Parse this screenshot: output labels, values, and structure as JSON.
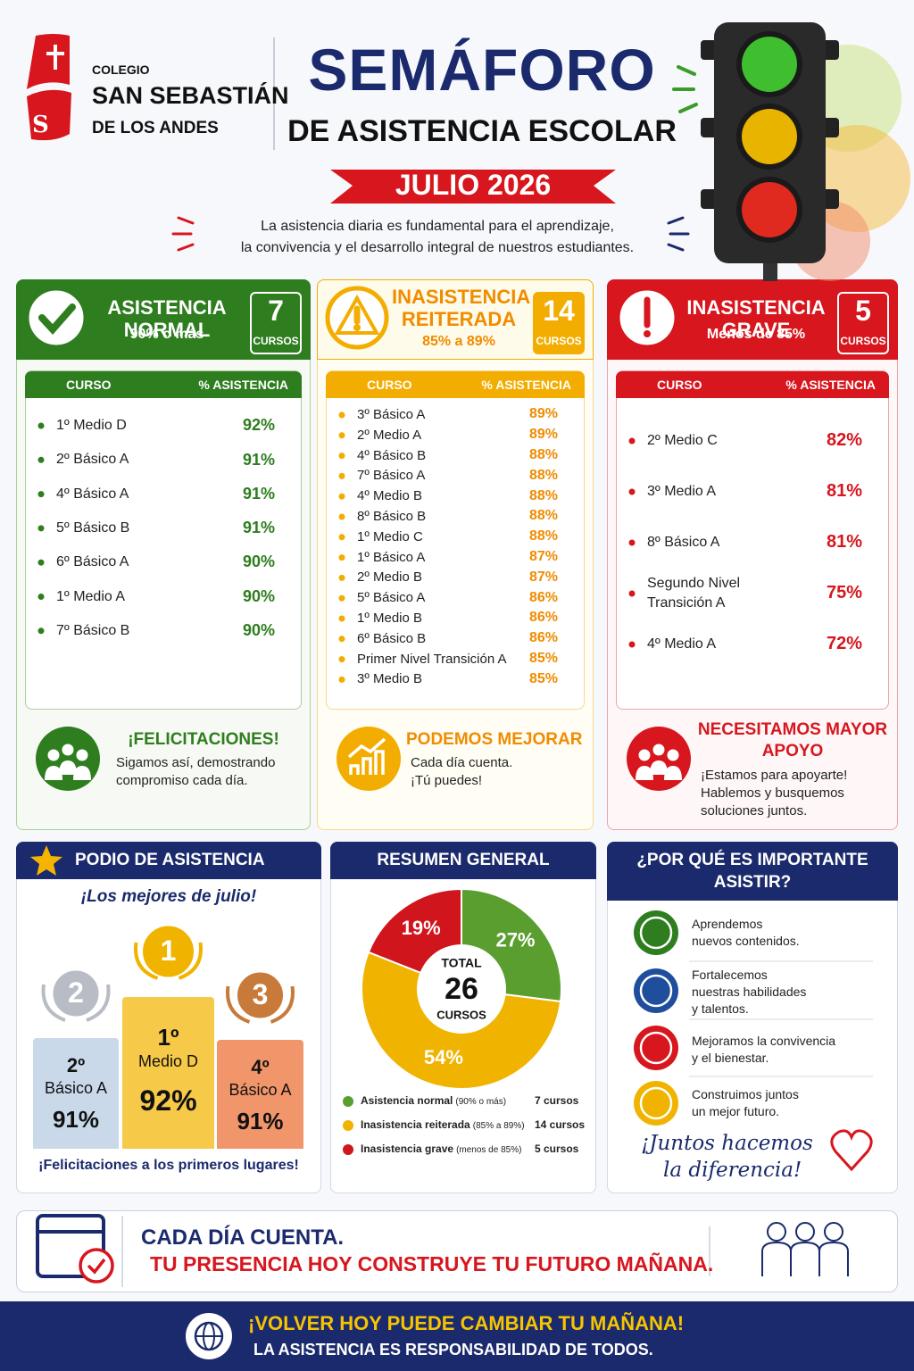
{
  "header": {
    "logo_letter": "S",
    "school": [
      "COLEGIO",
      "SAN SEBASTIÁN",
      "DE LOS ANDES"
    ],
    "title": "SEMÁFORO",
    "subtitle": "DE ASISTENCIA ESCOLAR",
    "date": "JULIO 2026",
    "intro": [
      "La asistencia diaria es fundamental para el aprendizaje,",
      "la convivencia y el desarrollo integral de nuestros estudiantes."
    ]
  },
  "panels": [
    {
      "title": "ASISTENCIA NORMAL",
      "range": "90% o más",
      "count": 7,
      "count_unit": "CURSOS",
      "columns": [
        "CURSO",
        "% ASISTENCIA"
      ],
      "rows": [
        [
          "1º Medio D",
          "92%"
        ],
        [
          "2º Básico A",
          "91%"
        ],
        [
          "4º Básico A",
          "91%"
        ],
        [
          "5º Básico B",
          "91%"
        ],
        [
          "6º Básico A",
          "90%"
        ],
        [
          "1º Medio A",
          "90%"
        ],
        [
          "7º Básico B",
          "90%"
        ]
      ],
      "message": {
        "title": "¡FELICITACIONES!",
        "text": [
          "Sigamos así, demostrando",
          "compromiso cada día."
        ]
      }
    },
    {
      "title": "INASISTENCIA REITERADA",
      "range": "85% a 89%",
      "count": 14,
      "count_unit": "CURSOS",
      "columns": [
        "CURSO",
        "% ASISTENCIA"
      ],
      "rows": [
        [
          "3º Básico A",
          "89%"
        ],
        [
          "2º Medio A",
          "89%"
        ],
        [
          "4º Básico B",
          "88%"
        ],
        [
          "7º Básico A",
          "88%"
        ],
        [
          "4º Medio B",
          "88%"
        ],
        [
          "8º Básico B",
          "88%"
        ],
        [
          "1º Medio C",
          "88%"
        ],
        [
          "1º Básico A",
          "87%"
        ],
        [
          "2º Medio B",
          "87%"
        ],
        [
          "5º Básico A",
          "86%"
        ],
        [
          "1º Medio B",
          "86%"
        ],
        [
          "6º Básico B",
          "86%"
        ],
        [
          "Primer Nivel Transición A",
          "85%"
        ],
        [
          "3º Medio B",
          "85%"
        ]
      ],
      "message": {
        "title": "PODEMOS MEJORAR",
        "text": [
          "Cada día cuenta.",
          "¡Tú puedes!"
        ]
      }
    },
    {
      "title": "INASISTENCIA GRAVE",
      "range": "Menos de 85%",
      "count": 5,
      "count_unit": "CURSOS",
      "columns": [
        "CURSO",
        "% ASISTENCIA"
      ],
      "rows": [
        [
          "2º Medio C",
          "82%"
        ],
        [
          "3º Medio A",
          "81%"
        ],
        [
          "8º Básico A",
          "81%"
        ],
        [
          "Segundo Nivel Transición A",
          "75%"
        ],
        [
          "4º Medio A",
          "72%"
        ]
      ],
      "message": {
        "title": "NECESITAMOS MAYOR APOYO",
        "text": [
          "¡Estamos para apoyarte!",
          "Hablemos y busquemos",
          "soluciones juntos."
        ]
      }
    }
  ],
  "podium": {
    "title": "PODIO DE ASISTENCIA",
    "subtitle": "¡Los mejores de julio!",
    "places": [
      {
        "medal": 2,
        "course": [
          "2º",
          "Básico A"
        ],
        "value": "91%"
      },
      {
        "medal": 1,
        "course": [
          "1º",
          "Medio D"
        ],
        "value": "92%"
      },
      {
        "medal": 3,
        "course": [
          "4º",
          "Básico A"
        ],
        "value": "91%"
      }
    ],
    "footer": "¡Felicitaciones a los primeros lugares!"
  },
  "summary": {
    "title": "RESUMEN GENERAL",
    "center": [
      "TOTAL",
      26,
      "CURSOS"
    ],
    "counts": [
      "7 cursos",
      "14 cursos",
      "5 cursos"
    ]
  },
  "chart_data": {
    "type": "pie",
    "categories": [
      "Asistencia normal",
      "Inasistencia reiterada",
      "Inasistencia grave"
    ],
    "category_notes": [
      "(90% o más)",
      "(85% a 89%)",
      "(menos de 85%)"
    ],
    "values": [
      27,
      54,
      19
    ],
    "value_labels": [
      "27%",
      "54%",
      "19%"
    ],
    "colors": [
      "#5a9e2f",
      "#f0b400",
      "#d0151c"
    ]
  },
  "why": {
    "title": [
      "¿POR QUÉ ES IMPORTANTE",
      "ASISTIR?"
    ],
    "items": [
      [
        "Aprendemos",
        "nuevos contenidos."
      ],
      [
        "Fortalecemos",
        "nuestras habilidades",
        "y talentos."
      ],
      [
        "Mejoramos la convivencia",
        "y el bienestar."
      ],
      [
        "Construimos juntos",
        "un mejor futuro."
      ]
    ],
    "slogan": [
      "¡Juntos hacemos",
      "la diferencia!"
    ]
  },
  "banner": {
    "lines": [
      "CADA DÍA CUENTA.",
      "TU PRESENCIA HOY CONSTRUYE TU FUTURO MAÑANA."
    ]
  },
  "footer": {
    "lines": [
      "¡VOLVER HOY PUEDE CAMBIAR TU MAÑANA!",
      "LA ASISTENCIA ES RESPONSABILIDAD DE TODOS."
    ]
  }
}
